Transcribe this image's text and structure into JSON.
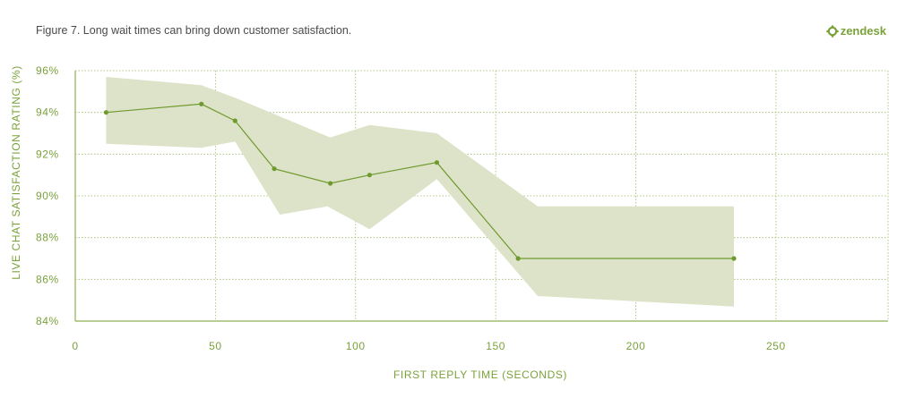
{
  "title": "Figure 7. Long wait times can bring down customer satisfaction.",
  "brand": {
    "name": "zendesk",
    "icon": "zendesk-logo-icon",
    "color": "#7aa23a"
  },
  "chart_data": {
    "type": "line",
    "xlabel": "FIRST REPLY TIME (SECONDS)",
    "ylabel": "LIVE CHAT SATISFACTION RATING (%)",
    "xlim": [
      0,
      290
    ],
    "ylim": [
      84,
      96
    ],
    "xticks": [
      0,
      50,
      100,
      150,
      200,
      250
    ],
    "yticks": [
      84,
      86,
      88,
      90,
      92,
      94,
      96
    ],
    "ytick_labels": [
      "84%",
      "86%",
      "88%",
      "90%",
      "92%",
      "94%",
      "96%"
    ],
    "grid": true,
    "line_color": "#6f9a2e",
    "band_color": "#dde3c8",
    "series": [
      {
        "x": [
          11,
          45,
          57,
          71,
          91,
          105,
          129,
          158,
          235
        ],
        "y": [
          94.0,
          94.4,
          93.6,
          91.3,
          90.6,
          91.0,
          91.6,
          87.0,
          87.0
        ]
      }
    ],
    "confidence_band": {
      "upper": [
        {
          "x": 11,
          "y": 95.7
        },
        {
          "x": 45,
          "y": 95.3
        },
        {
          "x": 57,
          "y": 94.7
        },
        {
          "x": 91,
          "y": 92.8
        },
        {
          "x": 105,
          "y": 93.4
        },
        {
          "x": 129,
          "y": 93.0
        },
        {
          "x": 165,
          "y": 89.5
        },
        {
          "x": 235,
          "y": 89.5
        }
      ],
      "lower": [
        {
          "x": 235,
          "y": 84.7
        },
        {
          "x": 165,
          "y": 85.2
        },
        {
          "x": 129,
          "y": 90.8
        },
        {
          "x": 105,
          "y": 88.4
        },
        {
          "x": 90,
          "y": 89.5
        },
        {
          "x": 73,
          "y": 89.1
        },
        {
          "x": 57,
          "y": 92.6
        },
        {
          "x": 45,
          "y": 92.3
        },
        {
          "x": 11,
          "y": 92.5
        }
      ]
    }
  }
}
